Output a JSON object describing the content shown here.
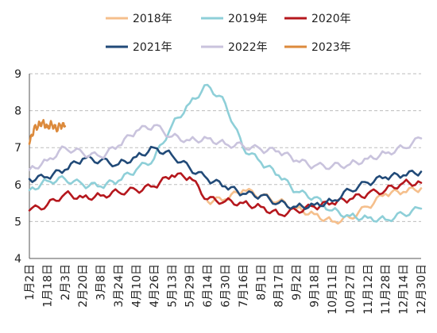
{
  "chart_data": {
    "type": "line",
    "title": "",
    "xlabel": "",
    "ylabel": "",
    "ylim": [
      4,
      9
    ],
    "yticks": [
      "4",
      "5",
      "6",
      "7",
      "8",
      "9"
    ],
    "grid": "horizontal",
    "legend_position": "top",
    "x_ticks": [
      "1月2日",
      "1月18日",
      "2月3日",
      "2月20日",
      "3月8日",
      "3月24日",
      "4月10日",
      "4月26日",
      "5月13日",
      "5月29日",
      "6月14日",
      "6月30日",
      "7月16日",
      "8月1日",
      "8月17日",
      "9月2日",
      "9月18日",
      "10月11日",
      "10月27日",
      "11月12日",
      "11月28日",
      "12月14日",
      "12月30日"
    ],
    "series": [
      {
        "name": "2018年",
        "color": "#f5bf8c",
        "x": [
          10,
          11,
          12,
          13,
          14,
          15,
          16,
          17,
          18,
          19,
          20,
          21,
          22
        ],
        "values": [
          5.55,
          5.6,
          5.85,
          5.7,
          5.55,
          5.35,
          5.2,
          5.0,
          5.1,
          5.4,
          5.75,
          5.8,
          5.9
        ]
      },
      {
        "name": "2019年",
        "color": "#8ecfd8",
        "x": [
          0,
          1,
          2,
          3,
          4,
          5,
          6,
          7,
          8,
          9,
          10,
          11,
          12,
          13,
          14,
          15,
          16,
          17,
          18,
          19,
          20,
          21,
          22
        ],
        "values": [
          5.85,
          6.1,
          6.15,
          6.0,
          5.95,
          6.1,
          6.4,
          6.7,
          7.6,
          8.2,
          8.7,
          8.2,
          7.0,
          6.6,
          6.25,
          5.8,
          5.65,
          5.3,
          5.15,
          5.1,
          5.05,
          5.2,
          5.35
        ]
      },
      {
        "name": "2020年",
        "color": "#b5171d",
        "x": [
          0,
          1,
          2,
          3,
          4,
          5,
          6,
          7,
          8,
          9,
          10,
          11,
          12,
          13,
          14,
          15,
          16,
          17,
          18,
          19,
          20,
          21,
          22
        ],
        "values": [
          5.3,
          5.45,
          5.75,
          5.65,
          5.7,
          5.8,
          5.85,
          5.95,
          6.25,
          6.2,
          5.6,
          5.55,
          5.5,
          5.4,
          5.2,
          5.3,
          5.4,
          5.5,
          5.6,
          5.75,
          5.85,
          6.05,
          6.05
        ]
      },
      {
        "name": "2021年",
        "color": "#214a78",
        "x": [
          0,
          1,
          2,
          3,
          4,
          5,
          6,
          7,
          8,
          9,
          10,
          11,
          12,
          13,
          14,
          15,
          16,
          17,
          18,
          19,
          20,
          21,
          22
        ],
        "values": [
          6.15,
          6.2,
          6.4,
          6.7,
          6.65,
          6.55,
          6.75,
          7.0,
          6.8,
          6.45,
          6.15,
          5.95,
          5.75,
          5.7,
          5.5,
          5.4,
          5.45,
          5.55,
          5.85,
          6.05,
          6.2,
          6.25,
          6.35
        ]
      },
      {
        "name": "2022年",
        "color": "#c9c3dd",
        "x": [
          0,
          1,
          2,
          3,
          4,
          5,
          6,
          7,
          8,
          9,
          10,
          11,
          12,
          13,
          14,
          15,
          16,
          17,
          18,
          19,
          20,
          21,
          22
        ],
        "values": [
          6.4,
          6.65,
          7.0,
          6.85,
          6.75,
          7.05,
          7.45,
          7.6,
          7.3,
          7.2,
          7.25,
          7.1,
          7.05,
          6.95,
          6.9,
          6.65,
          6.5,
          6.5,
          6.55,
          6.7,
          6.85,
          7.0,
          7.25
        ]
      },
      {
        "name": "2023年",
        "color": "#dc8a3c",
        "x": [
          0,
          0.25,
          0.5,
          0.75,
          1.0,
          1.25,
          1.5,
          1.75,
          2.0
        ],
        "values": [
          7.1,
          7.5,
          7.6,
          7.7,
          7.55,
          7.65,
          7.5,
          7.6,
          7.58
        ]
      }
    ]
  }
}
